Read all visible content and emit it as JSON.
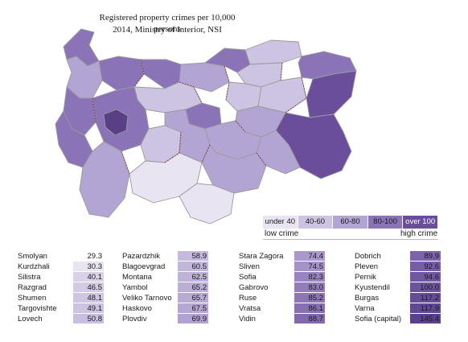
{
  "map": {
    "title_line1": "Registered property crimes per 10,000 persons",
    "title_line2": "2014, Ministry of Interior, NSI",
    "colors": {
      "under_40": "#e9e4f2",
      "c40_60": "#cdc3e2",
      "c60_80": "#b2a5d3",
      "c80_100": "#8a74b7",
      "over_100": "#6b4e9b",
      "dark_region": "#5a3f86"
    }
  },
  "legend": {
    "items": [
      {
        "label": "under 40",
        "color": "#e9e4f2",
        "text_color": "#1a1a1a"
      },
      {
        "label": "40-60",
        "color": "#cdc3e2",
        "text_color": "#1a1a1a"
      },
      {
        "label": "60-80",
        "color": "#b2a5d3",
        "text_color": "#1a1a1a"
      },
      {
        "label": "80-100",
        "color": "#8a74b7",
        "text_color": "#1a1a1a"
      },
      {
        "label": "over 100",
        "color": "#6b4e9b",
        "text_color": "#ffffff"
      }
    ],
    "low_caption": "low crime",
    "high_caption": "high crime"
  },
  "table": {
    "columns": [
      [
        {
          "name": "Smolyan",
          "value": "29.3",
          "color": "#ffffff"
        },
        {
          "name": "Kurdzhali",
          "value": "30.3",
          "color": "#e9e4f2"
        },
        {
          "name": "Silistra",
          "value": "40.1",
          "color": "#d9d1e8"
        },
        {
          "name": "Razgrad",
          "value": "46.5",
          "color": "#d3cae5"
        },
        {
          "name": "Shumen",
          "value": "48.1",
          "color": "#cfc6e3"
        },
        {
          "name": "Targovishte",
          "value": "49.1",
          "color": "#ccc2e1"
        },
        {
          "name": "Lovech",
          "value": "50.8",
          "color": "#c8bedf"
        }
      ],
      [
        {
          "name": "Pazardzhik",
          "value": "58.9",
          "color": "#c5badd"
        },
        {
          "name": "Blagoevgrad",
          "value": "60.5",
          "color": "#c1b6db"
        },
        {
          "name": "Montana",
          "value": "62.5",
          "color": "#beb2d9"
        },
        {
          "name": "Yambol",
          "value": "65.2",
          "color": "#bbaed7"
        },
        {
          "name": "Veliko Tarnovo",
          "value": "65.7",
          "color": "#b8aad5"
        },
        {
          "name": "Haskovo",
          "value": "67.5",
          "color": "#b5a6d3"
        },
        {
          "name": "Plovdiv",
          "value": "69.9",
          "color": "#b1a2d1"
        }
      ],
      [
        {
          "name": "Stara Zagora",
          "value": "74.4",
          "color": "#aa98cb"
        },
        {
          "name": "Sliven",
          "value": "74.5",
          "color": "#a592c7"
        },
        {
          "name": "Sofia",
          "value": "82.3",
          "color": "#9a84bf"
        },
        {
          "name": "Gabrovo",
          "value": "83.0",
          "color": "#937cba"
        },
        {
          "name": "Ruse",
          "value": "85.2",
          "color": "#8d75b6"
        },
        {
          "name": "Vratsa",
          "value": "86.1",
          "color": "#876fb2"
        },
        {
          "name": "Vidin",
          "value": "88.7",
          "color": "#8169ae"
        }
      ],
      [
        {
          "name": "Dobrich",
          "value": "89.9",
          "color": "#7c63aa"
        },
        {
          "name": "Pleven",
          "value": "92.6",
          "color": "#775da6"
        },
        {
          "name": "Pernik",
          "value": "94.6",
          "color": "#7258a2"
        },
        {
          "name": "Kyustendil",
          "value": "100.0",
          "color": "#6d539e"
        },
        {
          "name": "Burgas",
          "value": "117.2",
          "color": "#674d98"
        },
        {
          "name": "Varna",
          "value": "117.9",
          "color": "#614893"
        },
        {
          "name": "Sofia (capital)",
          "value": "145.4",
          "color": "#5a418b"
        }
      ]
    ]
  }
}
